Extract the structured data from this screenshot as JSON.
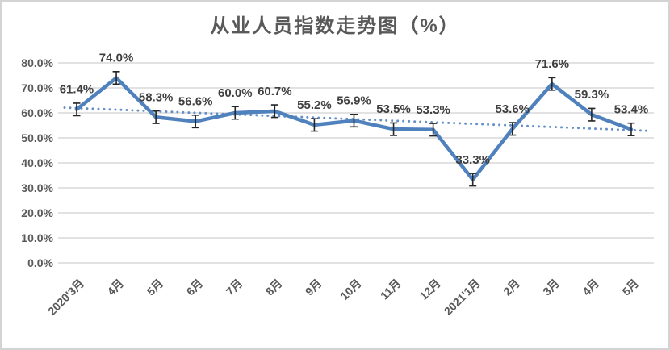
{
  "chart_data": {
    "type": "line",
    "title": "从业人员指数走势图（%）",
    "categories": [
      "2020'3月",
      "4月",
      "5月",
      "6月",
      "7月",
      "8月",
      "9月",
      "10月",
      "11月",
      "12月",
      "2021'1月",
      "2月",
      "3月",
      "4月",
      "5月"
    ],
    "values": [
      61.4,
      74.0,
      58.3,
      56.6,
      60.0,
      60.7,
      55.2,
      56.9,
      53.5,
      53.3,
      33.3,
      53.6,
      71.6,
      59.3,
      53.4
    ],
    "data_labels": [
      "61.4%",
      "74.0%",
      "58.3%",
      "56.6%",
      "60.0%",
      "60.7%",
      "55.2%",
      "56.9%",
      "53.5%",
      "53.3%",
      "33.3%",
      "53.6%",
      "71.6%",
      "59.3%",
      "53.4%"
    ],
    "y_ticks": [
      "80.0%",
      "70.0%",
      "60.0%",
      "50.0%",
      "40.0%",
      "30.0%",
      "20.0%",
      "10.0%",
      "0.0%"
    ],
    "ylim": [
      0,
      80
    ],
    "grid": true,
    "legend": "none",
    "error_bar_pct": 2.5,
    "trendline": {
      "style": "dotted",
      "start_value": 62.1,
      "end_value": 52.8
    },
    "colors": {
      "series": "#4F81BD",
      "trendline": "#638EC6",
      "gridline": "#D9D9D9",
      "axis_text": "#595959",
      "data_label_text": "#3F3F3F",
      "error_bar": "#262626",
      "title_text": "#595959",
      "panel_border": "#D3D3D3",
      "background": "#FFFFFF"
    }
  }
}
